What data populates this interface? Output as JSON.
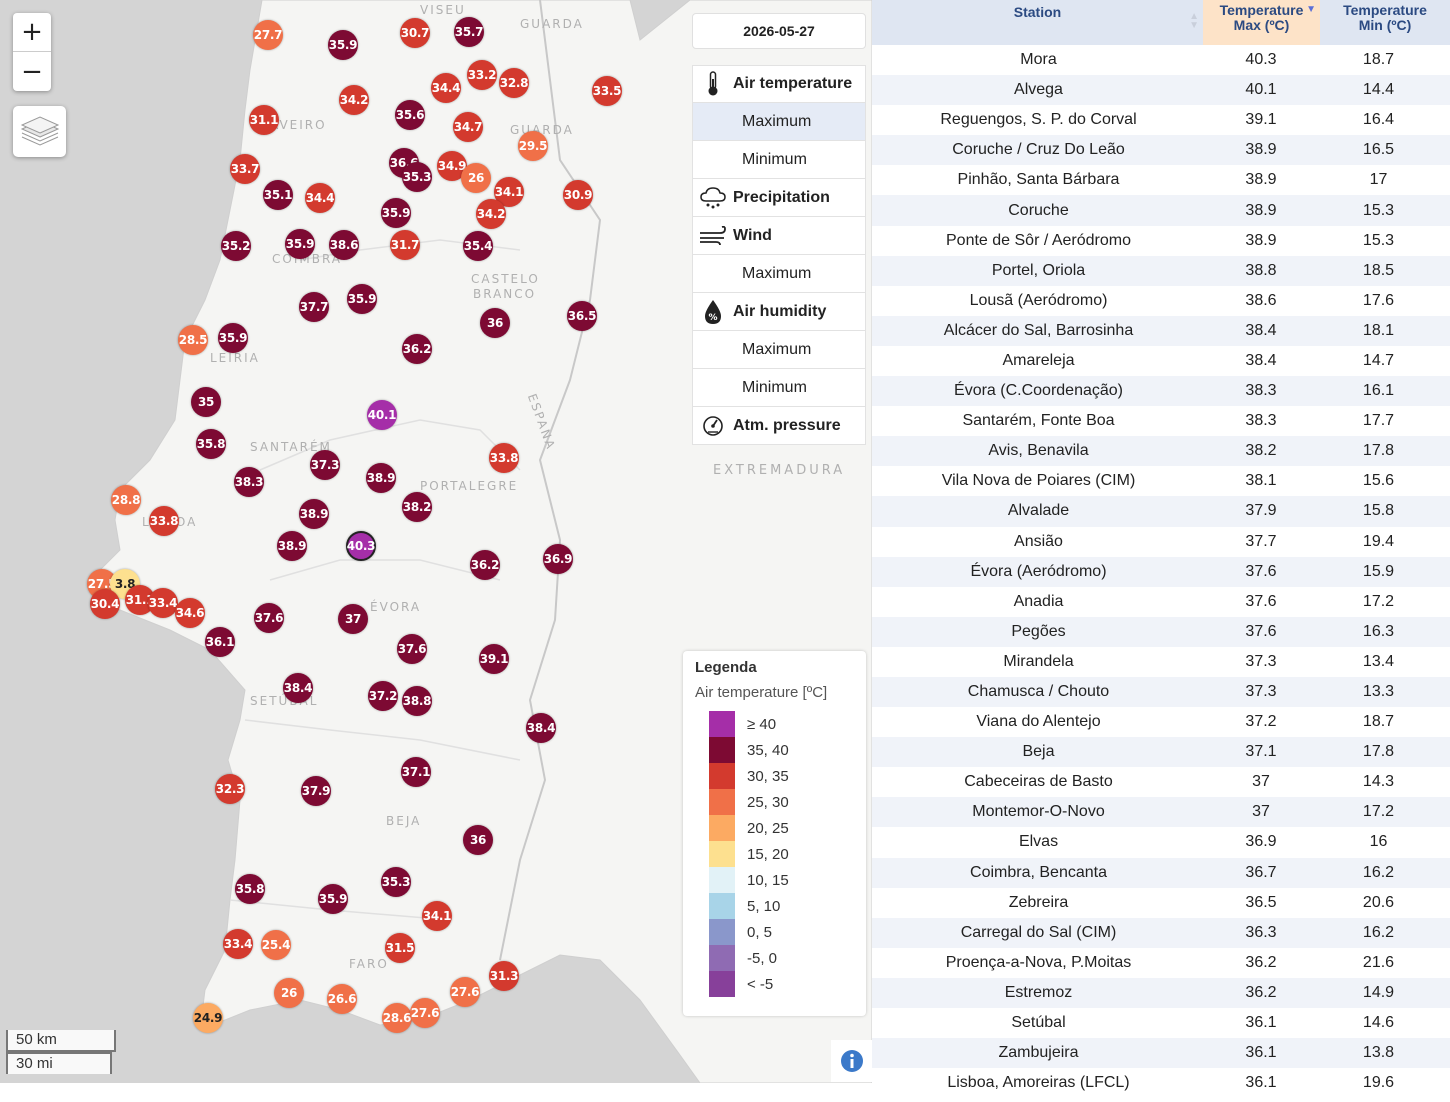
{
  "date": "2026-05-27",
  "zoom": {
    "in_label": "+",
    "out_label": "−"
  },
  "variables": [
    {
      "label": "Air temperature",
      "icon": "thermometer-icon",
      "kind": "head"
    },
    {
      "label": "Maximum",
      "kind": "sub",
      "active": true
    },
    {
      "label": "Minimum",
      "kind": "sub"
    },
    {
      "label": "Precipitation",
      "icon": "rain-cloud-icon",
      "kind": "head"
    },
    {
      "label": "Wind",
      "icon": "wind-icon",
      "kind": "head"
    },
    {
      "label": "Maximum",
      "kind": "sub"
    },
    {
      "label": "Air humidity",
      "icon": "humidity-drop-icon",
      "kind": "head"
    },
    {
      "label": "Maximum",
      "kind": "sub"
    },
    {
      "label": "Minimum",
      "kind": "sub"
    },
    {
      "label": "Atm. pressure",
      "icon": "pressure-gauge-icon",
      "kind": "head"
    }
  ],
  "legend": {
    "title": "Legenda",
    "subtitle": "Air temperature [ºC]",
    "items": [
      {
        "label": "≥ 40",
        "color": "#a52ea8"
      },
      {
        "label": "35, 40",
        "color": "#7d0a33"
      },
      {
        "label": "30, 35",
        "color": "#d33a2e"
      },
      {
        "label": "25, 30",
        "color": "#f07048"
      },
      {
        "label": "20, 25",
        "color": "#fcaa62"
      },
      {
        "label": "15, 20",
        "color": "#fde08f"
      },
      {
        "label": "10, 15",
        "color": "#e2f2f7"
      },
      {
        "label": "5, 10",
        "color": "#a8d4e8"
      },
      {
        "label": "0, 5",
        "color": "#8a97cb"
      },
      {
        "label": "-5, 0",
        "color": "#8f6bb3"
      },
      {
        "label": "< -5",
        "color": "#87409a"
      }
    ]
  },
  "scale": {
    "km": "50 km",
    "mi": "30 mi"
  },
  "map_labels": [
    "VISEU",
    "GUARDA",
    "AVEIRO",
    "GUARDA",
    "COIMBRA",
    "CASTELO",
    "BRANCO",
    "LEIRIA",
    "SANTARÉM",
    "ESPANA",
    "PORTALEGRE",
    "EXTREMADURA",
    "LISBOA",
    "ÉVORA",
    "SETÚBAL",
    "BEJA",
    "FARO"
  ],
  "markers": [
    "27.7",
    "35.9",
    "30.7",
    "35.7",
    "34.2",
    "34.4",
    "33.2",
    "32.8",
    "33.5",
    "31.1",
    "35.6",
    "34.7",
    "29.5",
    "33.7",
    "35.1",
    "34.4",
    "36.6",
    "35.3",
    "34.9",
    "26",
    "34.1",
    "30.9",
    "34.2",
    "35.9",
    "35.2",
    "35.9",
    "38.6",
    "31.7",
    "35.4",
    "37.7",
    "35.9",
    "28.5",
    "35.9",
    "36",
    "36.5",
    "36.2",
    "35",
    "40.1",
    "35.8",
    "37.3",
    "33.8",
    "38.3",
    "38.9",
    "28.8",
    "33.8",
    "38.9",
    "38.2",
    "38.9",
    "40.3",
    "36.2",
    "36.9",
    "27.5",
    "3.8",
    "30.4",
    "31.1",
    "33.4",
    "34.6",
    "37.6",
    "37",
    "36.1",
    "37.6",
    "39.1",
    "38.4",
    "37.2",
    "38.8",
    "38.4",
    "32.3",
    "37.9",
    "37.1",
    "36",
    "35.8",
    "35.9",
    "35.3",
    "34.1",
    "33.4",
    "25.4",
    "31.5",
    "31.3",
    "26",
    "26.6",
    "27.6",
    "28.6",
    "27.6",
    "24.9"
  ],
  "table": {
    "headers": {
      "station": "Station",
      "max_l1": "Temperature",
      "max_l2": "Max (ºC)",
      "min_l1": "Temperature",
      "min_l2": "Min (ºC)"
    },
    "rows": [
      [
        "Mora",
        "40.3",
        "18.7"
      ],
      [
        "Alvega",
        "40.1",
        "14.4"
      ],
      [
        "Reguengos, S. P. do Corval",
        "39.1",
        "16.4"
      ],
      [
        "Coruche / Cruz Do Leão",
        "38.9",
        "16.5"
      ],
      [
        "Pinhão, Santa Bárbara",
        "38.9",
        "17"
      ],
      [
        "Coruche",
        "38.9",
        "15.3"
      ],
      [
        "Ponte de Sôr / Aeródromo",
        "38.9",
        "15.3"
      ],
      [
        "Portel, Oriola",
        "38.8",
        "18.5"
      ],
      [
        "Lousã (Aeródromo)",
        "38.6",
        "17.6"
      ],
      [
        "Alcácer do Sal, Barrosinha",
        "38.4",
        "18.1"
      ],
      [
        "Amareleja",
        "38.4",
        "14.7"
      ],
      [
        "Évora (C.Coordenação)",
        "38.3",
        "16.1"
      ],
      [
        "Santarém, Fonte Boa",
        "38.3",
        "17.7"
      ],
      [
        "Avis, Benavila",
        "38.2",
        "17.8"
      ],
      [
        "Vila Nova de Poiares (CIM)",
        "38.1",
        "15.6"
      ],
      [
        "Alvalade",
        "37.9",
        "15.8"
      ],
      [
        "Ansião",
        "37.7",
        "19.4"
      ],
      [
        "Évora (Aeródromo)",
        "37.6",
        "15.9"
      ],
      [
        "Anadia",
        "37.6",
        "17.2"
      ],
      [
        "Pegões",
        "37.6",
        "16.3"
      ],
      [
        "Mirandela",
        "37.3",
        "13.4"
      ],
      [
        "Chamusca / Chouto",
        "37.3",
        "13.3"
      ],
      [
        "Viana do Alentejo",
        "37.2",
        "18.7"
      ],
      [
        "Beja",
        "37.1",
        "17.8"
      ],
      [
        "Cabeceiras de Basto",
        "37",
        "14.3"
      ],
      [
        "Montemor-O-Novo",
        "37",
        "17.2"
      ],
      [
        "Elvas",
        "36.9",
        "16"
      ],
      [
        "Coimbra, Bencanta",
        "36.7",
        "16.2"
      ],
      [
        "Zebreira",
        "36.5",
        "20.6"
      ],
      [
        "Carregal do Sal (CIM)",
        "36.3",
        "16.2"
      ],
      [
        "Proença-a-Nova, P.Moitas",
        "36.2",
        "21.6"
      ],
      [
        "Estremoz",
        "36.2",
        "14.9"
      ],
      [
        "Setúbal",
        "36.1",
        "14.6"
      ],
      [
        "Zambujeira",
        "36.1",
        "13.8"
      ],
      [
        "Lisboa, Amoreiras (LFCL)",
        "36.1",
        "19.6"
      ]
    ]
  }
}
